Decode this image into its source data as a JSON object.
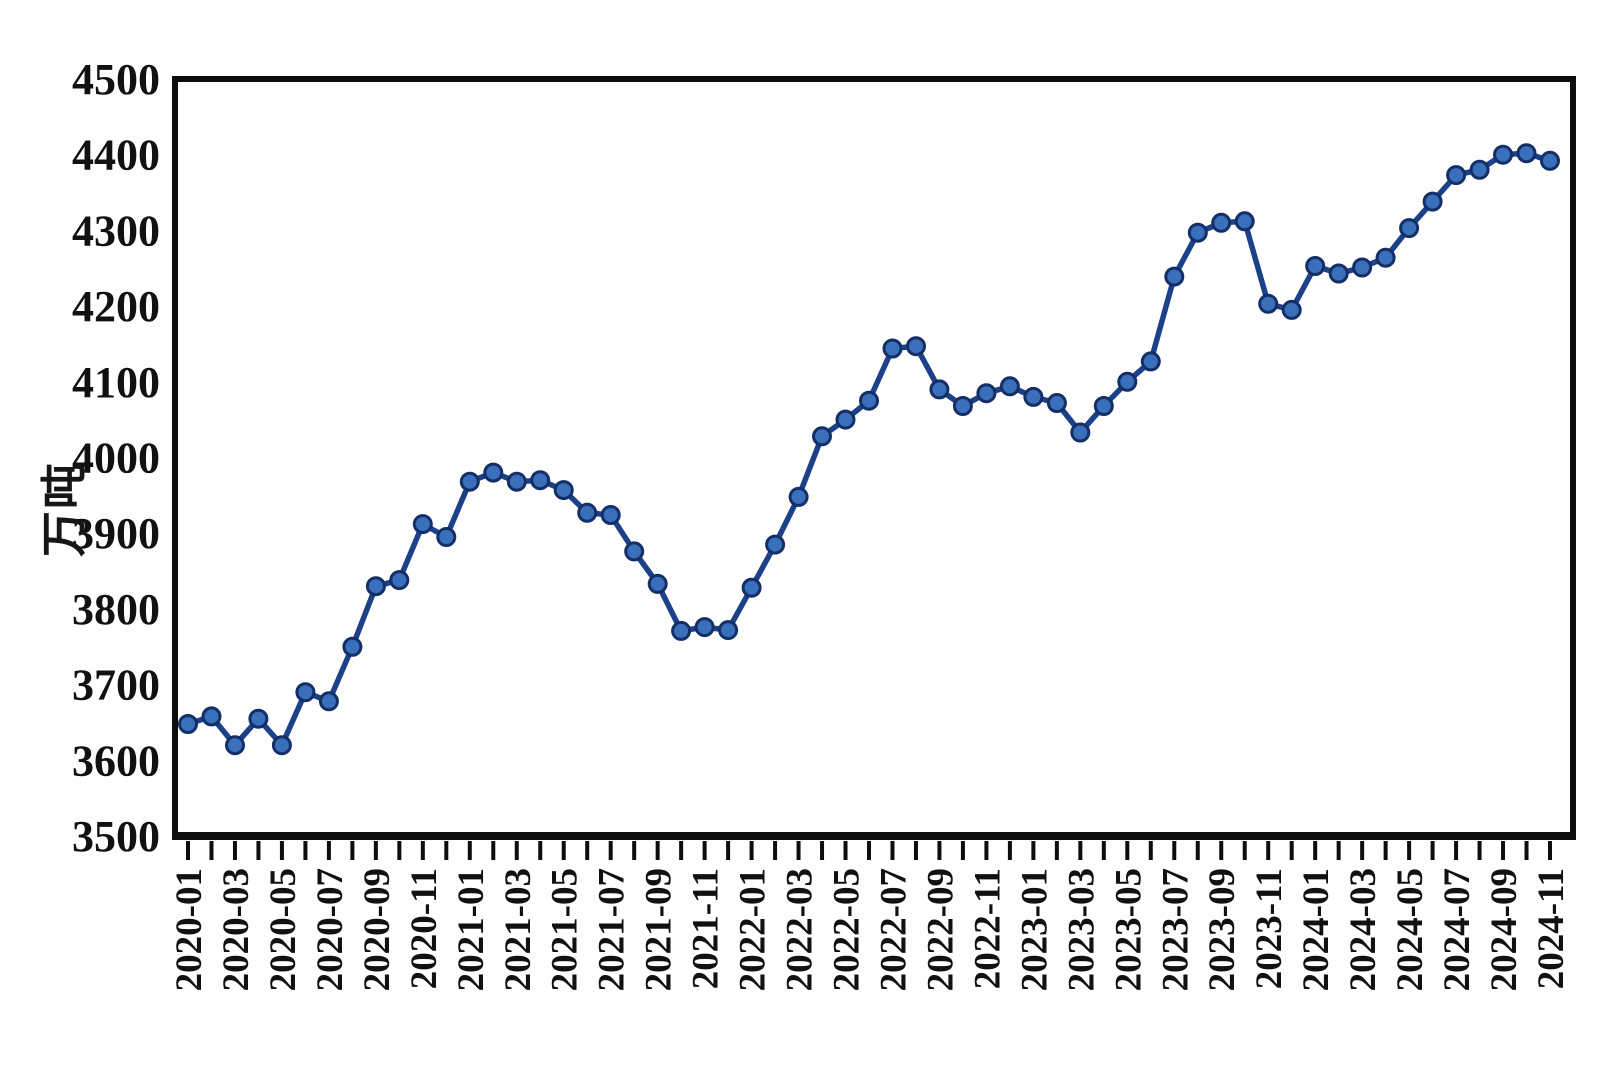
{
  "chart_data": {
    "type": "line",
    "title": "",
    "xlabel": "",
    "ylabel": "万吨",
    "ylim": [
      3500,
      4500
    ],
    "ytick_step": 100,
    "ytick_labels": [
      "3500",
      "3600",
      "3700",
      "3800",
      "3900",
      "4000",
      "4100",
      "4200",
      "4300",
      "4400",
      "4500"
    ],
    "xtick_label_every": 2,
    "grid": false,
    "legend": "none",
    "x": [
      "2020-01",
      "2020-02",
      "2020-03",
      "2020-04",
      "2020-05",
      "2020-06",
      "2020-07",
      "2020-08",
      "2020-09",
      "2020-10",
      "2020-11",
      "2020-12",
      "2021-01",
      "2021-02",
      "2021-03",
      "2021-04",
      "2021-05",
      "2021-06",
      "2021-07",
      "2021-08",
      "2021-09",
      "2021-10",
      "2021-11",
      "2021-12",
      "2022-01",
      "2022-02",
      "2022-03",
      "2022-04",
      "2022-05",
      "2022-06",
      "2022-07",
      "2022-08",
      "2022-09",
      "2022-10",
      "2022-11",
      "2022-12",
      "2023-01",
      "2023-02",
      "2023-03",
      "2023-04",
      "2023-05",
      "2023-06",
      "2023-07",
      "2023-08",
      "2023-09",
      "2023-10",
      "2023-11",
      "2023-12",
      "2024-01",
      "2024-02",
      "2024-03",
      "2024-04",
      "2024-05",
      "2024-06",
      "2024-07",
      "2024-08",
      "2024-09",
      "2024-10",
      "2024-11"
    ],
    "series": [
      {
        "name": "",
        "values": [
          3648,
          3658,
          3620,
          3655,
          3620,
          3690,
          3678,
          3750,
          3830,
          3838,
          3912,
          3895,
          3968,
          3980,
          3968,
          3970,
          3957,
          3927,
          3924,
          3876,
          3833,
          3771,
          3776,
          3772,
          3828,
          3885,
          3948,
          4028,
          4050,
          4075,
          4144,
          4147,
          4090,
          4068,
          4085,
          4094,
          4080,
          4072,
          4033,
          4068,
          4100,
          4127,
          4239,
          4297,
          4310,
          4312,
          4203,
          4195,
          4253,
          4243,
          4251,
          4264,
          4303,
          4338,
          4373,
          4380,
          4400,
          4402,
          4392
        ]
      }
    ],
    "colors": {
      "line": "#1c4189",
      "marker_fill": "#3a6fbc",
      "marker_edge": "#142f66",
      "axis": "#0d0d0d",
      "tick_text": "#111111",
      "background": "#fefefe"
    }
  }
}
